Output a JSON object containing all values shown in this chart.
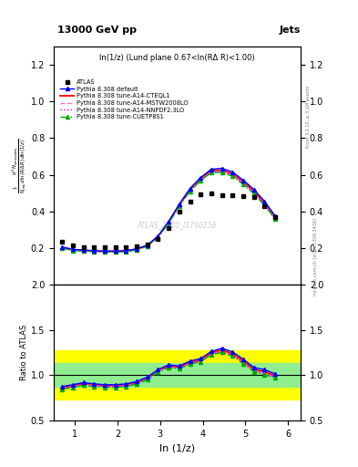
{
  "title_left": "13000 GeV pp",
  "title_right": "Jets",
  "plot_label": "ln(1/z) (Lund plane 0.67<ln(RΔ R)<1.00)",
  "ylabel_ratio": "Ratio to ATLAS",
  "xlabel": "ln (1/z)",
  "watermark": "ATLAS_2020_I1790256",
  "right_label": "Rivet 3.1.10, ≥ 3.1M events",
  "right_label2": "mcplots.cern.ch [arXiv:1306.3436]",
  "ylim_main": [
    0.0,
    1.3
  ],
  "ylim_ratio": [
    0.5,
    2.0
  ],
  "xlim": [
    0.5,
    6.3
  ],
  "x_ticks": [
    1,
    2,
    3,
    4,
    5,
    6
  ],
  "yticks_main": [
    0.2,
    0.4,
    0.6,
    0.8,
    1.0,
    1.2
  ],
  "yticks_ratio": [
    0.5,
    1.0,
    1.5,
    2.0
  ],
  "atlas_x": [
    0.7,
    0.95,
    1.2,
    1.45,
    1.7,
    1.95,
    2.2,
    2.45,
    2.7,
    2.95,
    3.2,
    3.45,
    3.7,
    3.95,
    4.2,
    4.45,
    4.7,
    4.95,
    5.2,
    5.45,
    5.7
  ],
  "atlas_y": [
    0.235,
    0.215,
    0.205,
    0.205,
    0.205,
    0.205,
    0.205,
    0.21,
    0.22,
    0.25,
    0.31,
    0.4,
    0.455,
    0.495,
    0.5,
    0.49,
    0.49,
    0.485,
    0.48,
    0.43,
    0.37
  ],
  "py_default_x": [
    0.7,
    0.95,
    1.2,
    1.45,
    1.7,
    1.95,
    2.2,
    2.45,
    2.7,
    2.95,
    3.2,
    3.45,
    3.7,
    3.95,
    4.2,
    4.45,
    4.7,
    4.95,
    5.2,
    5.45,
    5.7
  ],
  "py_default_y": [
    0.205,
    0.192,
    0.188,
    0.185,
    0.183,
    0.183,
    0.185,
    0.195,
    0.215,
    0.265,
    0.345,
    0.44,
    0.525,
    0.585,
    0.63,
    0.635,
    0.615,
    0.57,
    0.52,
    0.455,
    0.375
  ],
  "py_cteq_x": [
    0.7,
    0.95,
    1.2,
    1.45,
    1.7,
    1.95,
    2.2,
    2.45,
    2.7,
    2.95,
    3.2,
    3.45,
    3.7,
    3.95,
    4.2,
    4.45,
    4.7,
    4.95,
    5.2,
    5.45,
    5.7
  ],
  "py_cteq_y": [
    0.202,
    0.19,
    0.186,
    0.183,
    0.181,
    0.181,
    0.183,
    0.193,
    0.213,
    0.262,
    0.34,
    0.435,
    0.518,
    0.578,
    0.623,
    0.625,
    0.605,
    0.56,
    0.51,
    0.445,
    0.368
  ],
  "py_mstw_x": [
    0.7,
    0.95,
    1.2,
    1.45,
    1.7,
    1.95,
    2.2,
    2.45,
    2.7,
    2.95,
    3.2,
    3.45,
    3.7,
    3.95,
    4.2,
    4.45,
    4.7,
    4.95,
    5.2,
    5.45,
    5.7
  ],
  "py_mstw_y": [
    0.2,
    0.188,
    0.184,
    0.181,
    0.179,
    0.179,
    0.181,
    0.191,
    0.211,
    0.26,
    0.337,
    0.43,
    0.513,
    0.572,
    0.617,
    0.618,
    0.598,
    0.552,
    0.503,
    0.438,
    0.362
  ],
  "py_nnpdf_x": [
    0.7,
    0.95,
    1.2,
    1.45,
    1.7,
    1.95,
    2.2,
    2.45,
    2.7,
    2.95,
    3.2,
    3.45,
    3.7,
    3.95,
    4.2,
    4.45,
    4.7,
    4.95,
    5.2,
    5.45,
    5.7
  ],
  "py_nnpdf_y": [
    0.2,
    0.188,
    0.184,
    0.181,
    0.179,
    0.179,
    0.181,
    0.191,
    0.211,
    0.26,
    0.337,
    0.43,
    0.513,
    0.572,
    0.617,
    0.618,
    0.598,
    0.552,
    0.503,
    0.438,
    0.362
  ],
  "py_cuetp_x": [
    0.7,
    0.95,
    1.2,
    1.45,
    1.7,
    1.95,
    2.2,
    2.45,
    2.7,
    2.95,
    3.2,
    3.45,
    3.7,
    3.95,
    4.2,
    4.45,
    4.7,
    4.95,
    5.2,
    5.45,
    5.7
  ],
  "py_cuetp_y": [
    0.198,
    0.186,
    0.182,
    0.179,
    0.177,
    0.177,
    0.179,
    0.189,
    0.209,
    0.258,
    0.335,
    0.428,
    0.51,
    0.568,
    0.612,
    0.612,
    0.592,
    0.546,
    0.497,
    0.432,
    0.358
  ],
  "color_default": "#0000ff",
  "color_cteq": "#ff0000",
  "color_mstw": "#ff69b4",
  "color_nnpdf": "#ff00ff",
  "color_cuetp": "#00aa00",
  "band_yellow_lo": 0.73,
  "band_yellow_hi": 1.27,
  "band_green_lo": 0.87,
  "band_green_hi": 1.13
}
